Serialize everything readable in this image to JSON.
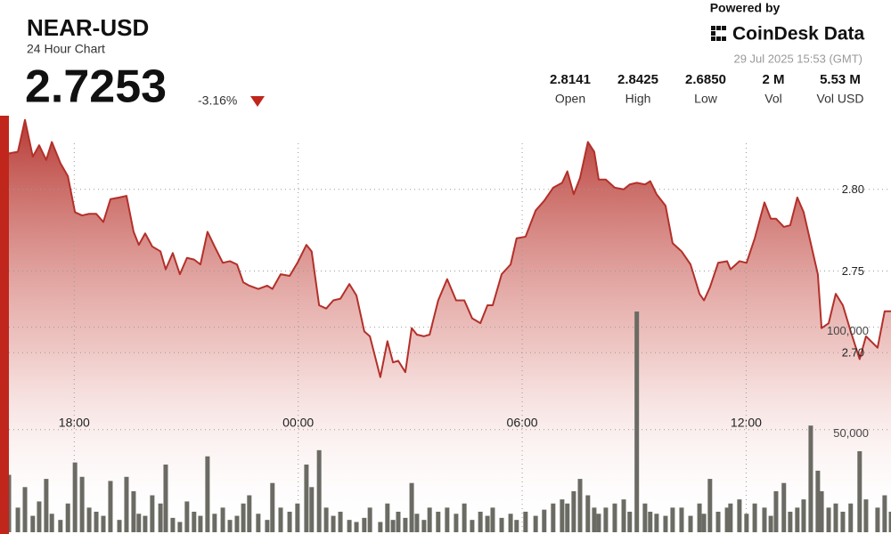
{
  "chart_data": {
    "type": "line",
    "title": "NEAR-USD",
    "subtitle": "24 Hour Chart",
    "price": "2.7253",
    "change": "-3.16%",
    "powered_by": "Powered by",
    "brand": "CoinDesk Data",
    "timestamp": "29 Jul 2025 15:53 (GMT)",
    "stats": [
      {
        "value": "2.8141",
        "label": "Open"
      },
      {
        "value": "2.8425",
        "label": "High"
      },
      {
        "value": "2.6850",
        "label": "Low"
      },
      {
        "value": "2 M",
        "label": "Vol"
      },
      {
        "value": "5.53 M",
        "label": "Vol USD"
      }
    ],
    "x": [
      16.25,
      16.49,
      16.68,
      16.89,
      17.06,
      17.25,
      17.4,
      17.63,
      17.83,
      18.02,
      18.21,
      18.4,
      18.59,
      18.78,
      18.97,
      19.21,
      19.4,
      19.59,
      19.73,
      19.9,
      20.09,
      20.31,
      20.45,
      20.64,
      20.83,
      21.02,
      21.21,
      21.38,
      21.57,
      21.76,
      21.98,
      22.17,
      22.36,
      22.53,
      22.69,
      22.93,
      23.17,
      23.31,
      23.53,
      23.77,
      23.98,
      24.22,
      24.36,
      24.56,
      24.75,
      24.94,
      25.13,
      25.37,
      25.56,
      25.77,
      25.92,
      26.2,
      26.39,
      26.54,
      26.68,
      26.87,
      27.04,
      27.18,
      27.37,
      27.52,
      27.75,
      27.99,
      28.23,
      28.45,
      28.66,
      28.88,
      29.07,
      29.21,
      29.45,
      29.69,
      29.85,
      30.09,
      30.36,
      30.59,
      30.83,
      31.07,
      31.21,
      31.38,
      31.55,
      31.76,
      31.93,
      32.05,
      32.24,
      32.48,
      32.72,
      32.88,
      33.07,
      33.29,
      33.43,
      33.6,
      33.84,
      34.03,
      34.27,
      34.51,
      34.75,
      34.87,
      35.03,
      35.25,
      35.49,
      35.58,
      35.82,
      36.01,
      36.23,
      36.49,
      36.66,
      36.8,
      37.01,
      37.18,
      37.37,
      37.54,
      37.73,
      37.92,
      38.02,
      38.21,
      38.4,
      38.59,
      38.8,
      39.04,
      39.21,
      39.52,
      39.71,
      39.88
    ],
    "xlim": [
      16.25,
      39.88
    ],
    "xticks": [
      {
        "value": 18,
        "label": "18:00"
      },
      {
        "value": 24,
        "label": "00:00"
      },
      {
        "value": 30,
        "label": "06:00"
      },
      {
        "value": 36,
        "label": "12:00"
      }
    ],
    "ylim": [
      2.59,
      2.85
    ],
    "yticks": [
      {
        "value": 2.7,
        "label": "2.70"
      },
      {
        "value": 2.75,
        "label": "2.75"
      },
      {
        "value": 2.8,
        "label": "2.80"
      }
    ],
    "y2lim": [
      0,
      207000
    ],
    "y2ticks": [
      {
        "value": 50000,
        "label": "50,000"
      },
      {
        "value": 100000,
        "label": "100,000"
      }
    ],
    "grid": true,
    "series": [
      {
        "type": "line",
        "color": "#b3302a",
        "values": [
          2.822,
          2.823,
          2.8425,
          2.82,
          2.827,
          2.818,
          2.829,
          2.816,
          2.808,
          2.786,
          2.784,
          2.785,
          2.785,
          2.78,
          2.794,
          2.795,
          2.796,
          2.774,
          2.766,
          2.773,
          2.765,
          2.762,
          2.751,
          2.761,
          2.748,
          2.758,
          2.757,
          2.754,
          2.774,
          2.765,
          2.755,
          2.756,
          2.754,
          2.743,
          2.741,
          2.739,
          2.741,
          2.739,
          2.748,
          2.747,
          2.755,
          2.766,
          2.762,
          2.729,
          2.727,
          2.732,
          2.733,
          2.742,
          2.735,
          2.713,
          2.71,
          2.685,
          2.707,
          2.694,
          2.695,
          2.688,
          2.715,
          2.711,
          2.71,
          2.711,
          2.732,
          2.745,
          2.732,
          2.732,
          2.721,
          2.718,
          2.729,
          2.729,
          2.748,
          2.754,
          2.77,
          2.771,
          2.787,
          2.793,
          2.801,
          2.804,
          2.811,
          2.797,
          2.807,
          2.829,
          2.823,
          2.806,
          2.806,
          2.801,
          2.8,
          2.803,
          2.804,
          2.803,
          2.805,
          2.797,
          2.79,
          2.767,
          2.762,
          2.754,
          2.736,
          2.732,
          2.74,
          2.755,
          2.756,
          2.751,
          2.756,
          2.755,
          2.77,
          2.792,
          2.782,
          2.782,
          2.777,
          2.778,
          2.795,
          2.786,
          2.767,
          2.748,
          2.715,
          2.718,
          2.736,
          2.729,
          2.713,
          2.696,
          2.71,
          2.703,
          2.7253,
          2.7253
        ]
      },
      {
        "type": "bar",
        "axis": "y2",
        "color": "#6b6b64",
        "values": [
          28000,
          12000,
          22000,
          8000,
          15000,
          26000,
          9000,
          6000,
          14000,
          34000,
          27000,
          12000,
          10000,
          8000,
          25000,
          6000,
          27000,
          20000,
          9000,
          8000,
          18000,
          14000,
          33000,
          7000,
          5000,
          15000,
          10000,
          8000,
          37000,
          9000,
          12000,
          6000,
          8000,
          14000,
          18000,
          9000,
          6000,
          24000,
          12000,
          10000,
          14000,
          33000,
          22000,
          40000,
          12000,
          8000,
          10000,
          6000,
          5000,
          7000,
          12000,
          5000,
          14000,
          6000,
          10000,
          7000,
          24000,
          9000,
          6000,
          12000,
          10000,
          12000,
          9000,
          14000,
          6000,
          10000,
          8000,
          12000,
          7000,
          9000,
          6000,
          10000,
          8000,
          11000,
          14000,
          16000,
          14000,
          20000,
          26000,
          18000,
          12000,
          9000,
          12000,
          14000,
          16000,
          10000,
          107600,
          14000,
          10000,
          9000,
          8000,
          12000,
          12000,
          8000,
          14000,
          9000,
          26000,
          10000,
          12000,
          14000,
          16000,
          9000,
          14000,
          12000,
          8000,
          20000,
          24000,
          10000,
          12000,
          16000,
          52000,
          30000,
          20000,
          12000,
          14000,
          10000,
          14000,
          39500,
          16000,
          12000,
          18000,
          10000
        ]
      }
    ]
  }
}
